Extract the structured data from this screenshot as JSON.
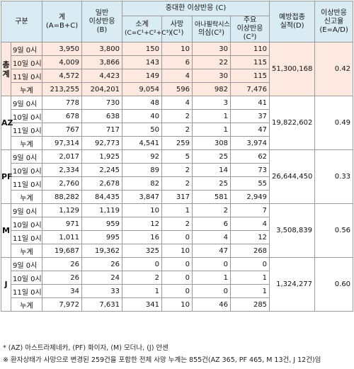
{
  "header": {
    "col_category": "구분",
    "col_total": [
      "계",
      "(A=B+C)"
    ],
    "col_general": [
      "일반",
      "이상반응",
      "(B)"
    ],
    "col_serious_group": "중대한 이상반응 (C)",
    "col_subtotal": [
      "소계",
      "(C=C¹+C²+C³)"
    ],
    "col_death": [
      "사망",
      "(C¹)"
    ],
    "col_anaphylaxis": [
      "아나필락시스",
      "의심(C²)"
    ],
    "col_major": [
      "주요",
      "이상반응",
      "(C³)"
    ],
    "col_vaccinations": [
      "예방접종",
      "실적(D)"
    ],
    "col_rate": [
      "이상반응",
      "신고율",
      "(E=A/D)"
    ]
  },
  "groups": [
    {
      "name": "총계",
      "rows": [
        {
          "time": "9일 0시",
          "total": "3,950",
          "general": "3,800",
          "subtotal": "150",
          "death": "10",
          "anaphylaxis": "30",
          "major": "110"
        },
        {
          "time": "10일 0시",
          "total": "4,009",
          "general": "3,866",
          "subtotal": "143",
          "death": "6",
          "anaphylaxis": "22",
          "major": "115"
        },
        {
          "time": "11일 0시",
          "total": "4,572",
          "general": "4,423",
          "subtotal": "149",
          "death": "4",
          "anaphylaxis": "30",
          "major": "115"
        }
      ],
      "cumulative": {
        "label": "누계",
        "total": "213,255",
        "general": "204,201",
        "subtotal": "9,054",
        "death": "596",
        "anaphylaxis": "982",
        "major": "7,476"
      },
      "vaccinations": "51,300,168",
      "rate": "0.42"
    },
    {
      "name": "AZ",
      "rows": [
        {
          "time": "9일 0시",
          "total": "778",
          "general": "730",
          "subtotal": "48",
          "death": "4",
          "anaphylaxis": "3",
          "major": "41"
        },
        {
          "time": "10일 0시",
          "total": "678",
          "general": "638",
          "subtotal": "40",
          "death": "2",
          "anaphylaxis": "1",
          "major": "37"
        },
        {
          "time": "11일 0시",
          "total": "767",
          "general": "717",
          "subtotal": "50",
          "death": "2",
          "anaphylaxis": "1",
          "major": "47"
        }
      ],
      "cumulative": {
        "label": "누계",
        "total": "97,314",
        "general": "92,773",
        "subtotal": "4,541",
        "death": "259",
        "anaphylaxis": "308",
        "major": "3,974"
      },
      "vaccinations": "19,822,602",
      "rate": "0.49"
    },
    {
      "name": "PF",
      "rows": [
        {
          "time": "9일 0시",
          "total": "2,017",
          "general": "1,925",
          "subtotal": "92",
          "death": "5",
          "anaphylaxis": "25",
          "major": "62"
        },
        {
          "time": "10일 0시",
          "total": "2,334",
          "general": "2,245",
          "subtotal": "89",
          "death": "2",
          "anaphylaxis": "14",
          "major": "73"
        },
        {
          "time": "11일 0시",
          "total": "2,760",
          "general": "2,678",
          "subtotal": "82",
          "death": "2",
          "anaphylaxis": "25",
          "major": "55"
        }
      ],
      "cumulative": {
        "label": "누계",
        "total": "88,282",
        "general": "84,435",
        "subtotal": "3,847",
        "death": "317",
        "anaphylaxis": "581",
        "major": "2,949"
      },
      "vaccinations": "26,644,450",
      "rate": "0.33"
    },
    {
      "name": "M",
      "rows": [
        {
          "time": "9일 0시",
          "total": "1,129",
          "general": "1,119",
          "subtotal": "10",
          "death": "1",
          "anaphylaxis": "2",
          "major": "7"
        },
        {
          "time": "10일 0시",
          "total": "971",
          "general": "959",
          "subtotal": "12",
          "death": "2",
          "anaphylaxis": "6",
          "major": "4"
        },
        {
          "time": "11일 0시",
          "total": "1,011",
          "general": "995",
          "subtotal": "16",
          "death": "0",
          "anaphylaxis": "4",
          "major": "12"
        }
      ],
      "cumulative": {
        "label": "누계",
        "total": "19,687",
        "general": "19,362",
        "subtotal": "325",
        "death": "10",
        "anaphylaxis": "47",
        "major": "268"
      },
      "vaccinations": "3,508,839",
      "rate": "0.56"
    },
    {
      "name": "J",
      "rows": [
        {
          "time": "9일 0시",
          "total": "26",
          "general": "26",
          "subtotal": "0",
          "death": "0",
          "anaphylaxis": "0",
          "major": "0"
        },
        {
          "time": "10일 0시",
          "total": "26",
          "general": "24",
          "subtotal": "2",
          "death": "0",
          "anaphylaxis": "1",
          "major": "1"
        },
        {
          "time": "11일 0시",
          "total": "34",
          "general": "33",
          "subtotal": "1",
          "death": "0",
          "anaphylaxis": "0",
          "major": "1"
        }
      ],
      "cumulative": {
        "label": "누계",
        "total": "7,972",
        "general": "7,631",
        "subtotal": "341",
        "death": "10",
        "anaphylaxis": "46",
        "major": "285"
      },
      "vaccinations": "1,324,277",
      "rate": "0.60"
    }
  ],
  "notes": [
    "* (AZ) 아스트라제네카, (PF) 화이자, (M) 모더나, (J) 얀센",
    "※ 환자상태가 사망으로 변경된 259건을 포함한 전체 사망 누계는 855건(AZ 365, PF 465, M 13건, J 12건)임"
  ],
  "colors": {
    "header_bg": "#d9ecf4",
    "total_group_bg": "#fde9df",
    "border": "#9a9a9a"
  }
}
